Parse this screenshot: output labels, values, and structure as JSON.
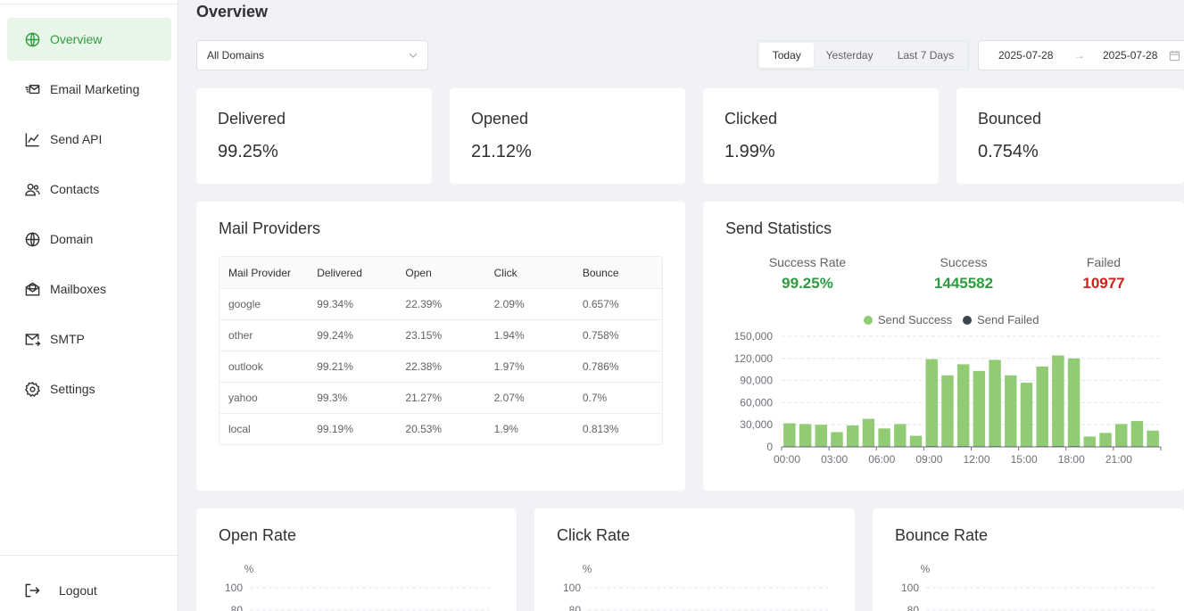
{
  "sidebar": {
    "items": [
      {
        "label": "Overview",
        "icon": "globe-icon",
        "active": true
      },
      {
        "label": "Email Marketing",
        "icon": "email-fast-icon",
        "active": false
      },
      {
        "label": "Send API",
        "icon": "line-chart-icon",
        "active": false
      },
      {
        "label": "Contacts",
        "icon": "contacts-icon",
        "active": false
      },
      {
        "label": "Domain",
        "icon": "globe-icon",
        "active": false
      },
      {
        "label": "Mailboxes",
        "icon": "mailbox-icon",
        "active": false
      },
      {
        "label": "SMTP",
        "icon": "mail-send-icon",
        "active": false
      },
      {
        "label": "Settings",
        "icon": "gear-icon",
        "active": false
      }
    ],
    "logout_label": "Logout"
  },
  "header": {
    "title": "Overview",
    "domain_select": "All Domains",
    "ranges": [
      "Today",
      "Yesterday",
      "Last 7 Days"
    ],
    "active_range": "Today",
    "date_from": "2025-07-28",
    "date_to": "2025-07-28",
    "date_separator": "→"
  },
  "stats": [
    {
      "title": "Delivered",
      "value": "99.25%"
    },
    {
      "title": "Opened",
      "value": "21.12%"
    },
    {
      "title": "Clicked",
      "value": "1.99%"
    },
    {
      "title": "Bounced",
      "value": "0.754%"
    }
  ],
  "providers": {
    "title": "Mail Providers",
    "columns": [
      "Mail Provider",
      "Delivered",
      "Open",
      "Click",
      "Bounce"
    ],
    "rows": [
      [
        "google",
        "99.34%",
        "22.39%",
        "2.09%",
        "0.657%"
      ],
      [
        "other",
        "99.24%",
        "23.15%",
        "1.94%",
        "0.758%"
      ],
      [
        "outlook",
        "99.21%",
        "22.38%",
        "1.97%",
        "0.786%"
      ],
      [
        "yahoo",
        "99.3%",
        "21.27%",
        "2.07%",
        "0.7%"
      ],
      [
        "local",
        "99.19%",
        "20.53%",
        "1.9%",
        "0.813%"
      ]
    ]
  },
  "send_statistics": {
    "title": "Send Statistics",
    "success_rate_label": "Success Rate",
    "success_rate": "99.25%",
    "success_label": "Success",
    "success": "1445582",
    "failed_label": "Failed",
    "failed": "10977",
    "colors": {
      "success": "#2e9c3e",
      "failed": "#d0201a"
    }
  },
  "chart_data": [
    {
      "type": "bar",
      "title": "",
      "xlabel": "",
      "ylabel": "",
      "ylim": [
        0,
        150000
      ],
      "yticks": [
        "0",
        "30,000",
        "60,000",
        "90,000",
        "120,000",
        "150,000"
      ],
      "xticks": [
        "00:00",
        "03:00",
        "06:00",
        "09:00",
        "12:00",
        "15:00",
        "18:00",
        "21:00"
      ],
      "legend_position": "top-center",
      "categories": [
        "00",
        "01",
        "02",
        "03",
        "04",
        "05",
        "06",
        "07",
        "08",
        "09",
        "10",
        "11",
        "12",
        "13",
        "14",
        "15",
        "16",
        "17",
        "18",
        "19",
        "20",
        "21",
        "22",
        "23"
      ],
      "series": [
        {
          "name": "Send Success",
          "color": "#91cc75",
          "values": [
            32000,
            31000,
            30000,
            20000,
            29000,
            38000,
            25000,
            31000,
            15000,
            119000,
            97000,
            112000,
            103000,
            118000,
            97000,
            87000,
            109000,
            124000,
            120000,
            14000,
            19000,
            31000,
            35000,
            22000
          ]
        },
        {
          "name": "Send Failed",
          "color": "#3d4451",
          "values": [
            240,
            230,
            225,
            150,
            215,
            285,
            190,
            230,
            110,
            900,
            730,
            845,
            775,
            890,
            730,
            655,
            820,
            935,
            905,
            105,
            145,
            235,
            265,
            165
          ]
        }
      ],
      "grid": true
    },
    {
      "type": "line",
      "title": "Open Rate",
      "ylabel": "%",
      "ylim": [
        0,
        100
      ],
      "yticks_visible": [
        "100",
        "80"
      ],
      "series": []
    },
    {
      "type": "line",
      "title": "Click Rate",
      "ylabel": "%",
      "ylim": [
        0,
        100
      ],
      "yticks_visible": [
        "100",
        "80"
      ],
      "series": []
    },
    {
      "type": "line",
      "title": "Bounce Rate",
      "ylabel": "%",
      "ylim": [
        0,
        100
      ],
      "yticks_visible": [
        "100",
        "80"
      ],
      "series": []
    }
  ],
  "rate_cards": [
    "Open Rate",
    "Click Rate",
    "Bounce Rate"
  ]
}
